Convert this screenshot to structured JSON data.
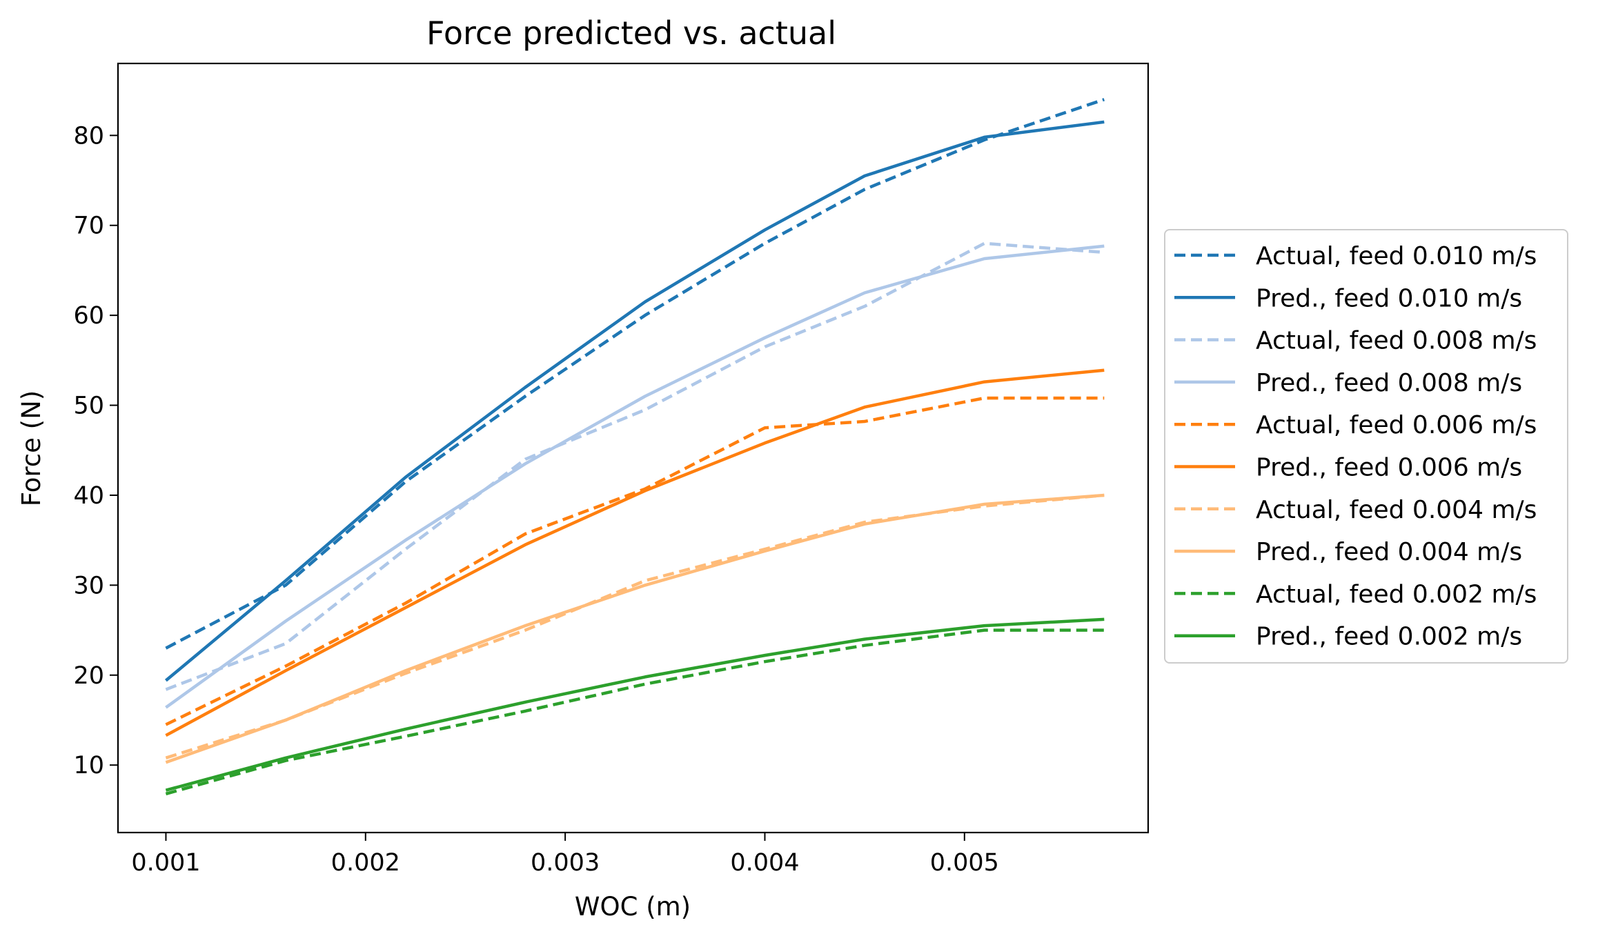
{
  "chart_data": {
    "type": "line",
    "title": "Force predicted vs. actual",
    "xlabel": "WOC (m)",
    "ylabel": "Force (N)",
    "xlim": [
      0.00076,
      0.00592
    ],
    "ylim": [
      2.5,
      88.0
    ],
    "xticks": [
      0.001,
      0.002,
      0.003,
      0.004,
      0.005
    ],
    "xtick_labels": [
      "0.001",
      "0.002",
      "0.003",
      "0.004",
      "0.005"
    ],
    "yticks": [
      10,
      20,
      30,
      40,
      50,
      60,
      70,
      80
    ],
    "ytick_labels": [
      "10",
      "20",
      "30",
      "40",
      "50",
      "60",
      "70",
      "80"
    ],
    "grid": false,
    "legend_position": "center-left outside right",
    "x": [
      0.001,
      0.0016,
      0.0022,
      0.0028,
      0.0034,
      0.004,
      0.0045,
      0.0051,
      0.0057
    ],
    "series": [
      {
        "name": "Actual, feed 0.010 m/s",
        "style": "dashed",
        "color": "#1f77b4",
        "values": [
          23.0,
          30.0,
          41.5,
          51.0,
          60.0,
          68.0,
          74.0,
          79.5,
          84.0
        ]
      },
      {
        "name": "Pred., feed 0.010 m/s",
        "style": "solid",
        "color": "#1f77b4",
        "values": [
          19.4,
          30.5,
          42.0,
          52.0,
          61.5,
          69.5,
          75.5,
          79.8,
          81.5
        ]
      },
      {
        "name": "Actual, feed 0.008 m/s",
        "style": "dashed",
        "color": "#aec7e8",
        "values": [
          18.4,
          23.5,
          34.0,
          44.0,
          49.5,
          56.5,
          61.0,
          68.0,
          67.0
        ]
      },
      {
        "name": "Pred., feed 0.008 m/s",
        "style": "solid",
        "color": "#aec7e8",
        "values": [
          16.4,
          26.0,
          35.0,
          43.5,
          51.0,
          57.5,
          62.5,
          66.3,
          67.7
        ]
      },
      {
        "name": "Actual, feed 0.006 m/s",
        "style": "dashed",
        "color": "#ff7f0e",
        "values": [
          14.5,
          21.0,
          28.0,
          35.7,
          40.7,
          47.5,
          48.2,
          50.8,
          50.8
        ]
      },
      {
        "name": "Pred., feed 0.006 m/s",
        "style": "solid",
        "color": "#ff7f0e",
        "values": [
          13.3,
          20.5,
          27.5,
          34.5,
          40.5,
          45.8,
          49.8,
          52.6,
          53.9
        ]
      },
      {
        "name": "Actual, feed 0.004 m/s",
        "style": "dashed",
        "color": "#ffbb78",
        "values": [
          10.8,
          15.0,
          20.2,
          25.0,
          30.5,
          34.0,
          37.0,
          38.8,
          40.0
        ]
      },
      {
        "name": "Pred., feed 0.004 m/s",
        "style": "solid",
        "color": "#ffbb78",
        "values": [
          10.3,
          15.0,
          20.5,
          25.5,
          30.0,
          33.8,
          36.8,
          39.0,
          40.0
        ]
      },
      {
        "name": "Actual, feed 0.002 m/s",
        "style": "dashed",
        "color": "#2ca02c",
        "values": [
          6.8,
          10.5,
          13.2,
          16.0,
          19.0,
          21.5,
          23.3,
          25.0,
          25.0
        ]
      },
      {
        "name": "Pred., feed 0.002 m/s",
        "style": "solid",
        "color": "#2ca02c",
        "values": [
          7.2,
          10.8,
          14.0,
          17.0,
          19.8,
          22.2,
          24.0,
          25.5,
          26.2
        ]
      }
    ]
  }
}
